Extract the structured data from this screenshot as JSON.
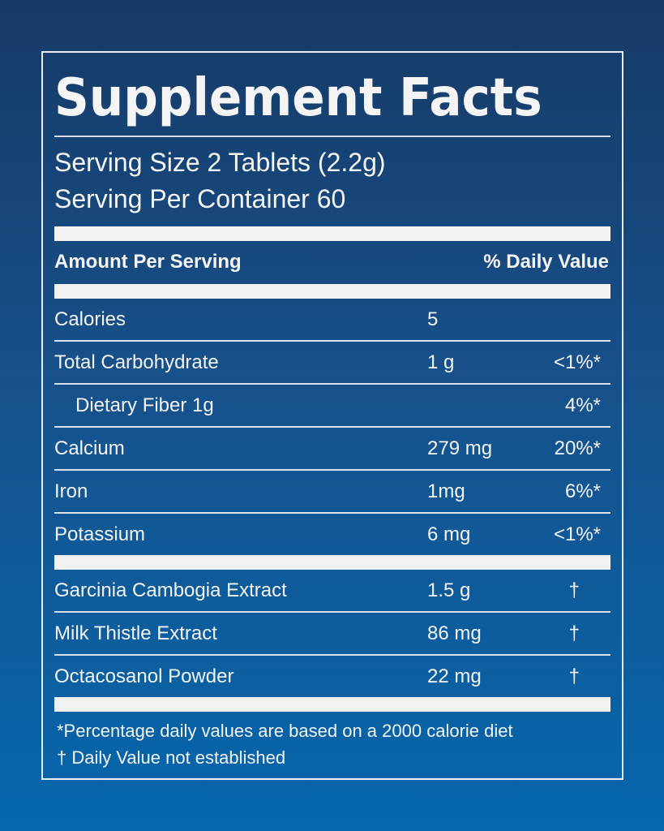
{
  "title": "Supplement Facts",
  "serving_size": "Serving Size 2 Tablets (2.2g)",
  "servings_per_container": "Serving Per Container 60",
  "header": {
    "amount": "Amount Per Serving",
    "daily_value": "% Daily Value"
  },
  "nutrients": [
    {
      "name": "Calories",
      "amount": "5",
      "dv": ""
    },
    {
      "name": "Total Carbohydrate",
      "amount": "1 g",
      "dv": "<1%*"
    },
    {
      "name": "Dietary Fiber 1g",
      "amount": "",
      "dv": "4%*",
      "indent": true
    },
    {
      "name": "Calcium",
      "amount": "279 mg",
      "dv": "20%*"
    },
    {
      "name": "Iron",
      "amount": "1mg",
      "dv": "6%*"
    },
    {
      "name": "Potassium",
      "amount": "6 mg",
      "dv": "<1%*"
    }
  ],
  "extracts": [
    {
      "name": "Garcinia Cambogia Extract",
      "amount": "1.5 g",
      "dv": "†"
    },
    {
      "name": "Milk Thistle Extract",
      "amount": "86 mg",
      "dv": "†"
    },
    {
      "name": "Octacosanol Powder",
      "amount": "22 mg",
      "dv": "†"
    }
  ],
  "footnotes": [
    "*Percentage daily values are based on a 2000 calorie diet",
    "† Daily Value not established"
  ],
  "colors": {
    "background_top": "#163a66",
    "background_bottom": "#0567ad",
    "text": "#f4f4f4"
  }
}
